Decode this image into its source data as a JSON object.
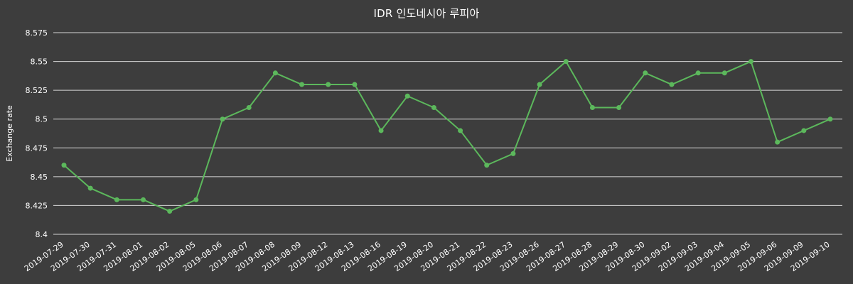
{
  "chart_data": {
    "type": "line",
    "title": "IDR 인도네시아 루피아",
    "ylabel": "Exchange rate",
    "xlabel": "",
    "ylim": [
      8.4,
      8.575
    ],
    "yticks": [
      8.4,
      8.425,
      8.45,
      8.475,
      8.5,
      8.525,
      8.55,
      8.575
    ],
    "grid": true,
    "legend": "none",
    "x": [
      "2019-07-29",
      "2019-07-30",
      "2019-07-31",
      "2019-08-01",
      "2019-08-02",
      "2019-08-05",
      "2019-08-06",
      "2019-08-07",
      "2019-08-08",
      "2019-08-09",
      "2019-08-12",
      "2019-08-13",
      "2019-08-16",
      "2019-08-19",
      "2019-08-20",
      "2019-08-21",
      "2019-08-22",
      "2019-08-23",
      "2019-08-26",
      "2019-08-27",
      "2019-08-28",
      "2019-08-29",
      "2019-08-30",
      "2019-09-02",
      "2019-09-03",
      "2019-09-04",
      "2019-09-05",
      "2019-09-06",
      "2019-09-09",
      "2019-09-10"
    ],
    "values": [
      8.46,
      8.44,
      8.43,
      8.43,
      8.42,
      8.43,
      8.5,
      8.51,
      8.54,
      8.53,
      8.53,
      8.53,
      8.49,
      8.52,
      8.51,
      8.49,
      8.46,
      8.47,
      8.53,
      8.55,
      8.51,
      8.51,
      8.54,
      8.53,
      8.54,
      8.54,
      8.55,
      8.48,
      8.49,
      8.5
    ],
    "colors": {
      "background": "#3d3d3d",
      "line": "#5cb85c",
      "marker": "#5cb85c",
      "grid": "#e6e6e6",
      "text": "#ffffff"
    }
  }
}
